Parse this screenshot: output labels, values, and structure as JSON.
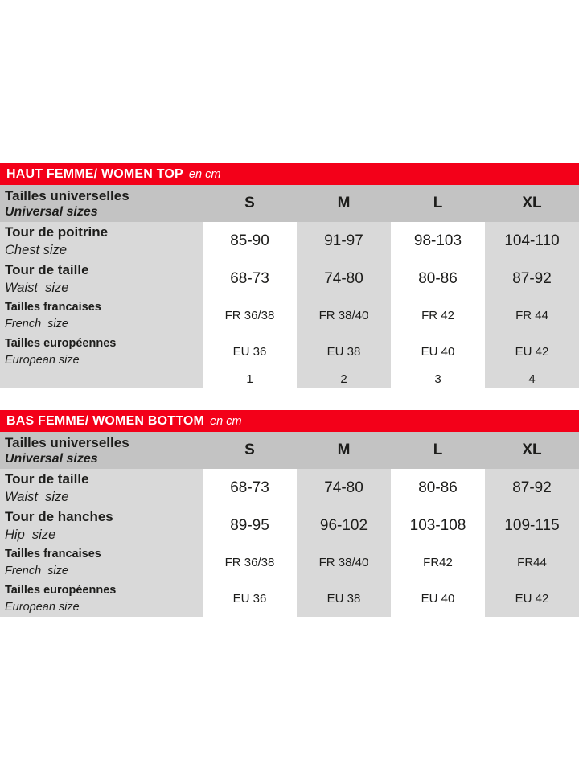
{
  "colors": {
    "banner_red": "#f30019",
    "header_gray": "#c3c3c3",
    "stripe_gray": "#d9d9d9",
    "text_dark": "#1d1d1b",
    "banner_text": "#ffffff"
  },
  "sections": [
    {
      "banner": {
        "title": "HAUT FEMME/ WOMEN TOP",
        "unit": "en cm"
      },
      "header": {
        "label_fr": "Tailles universelles",
        "label_en": "Universal sizes",
        "columns": [
          "S",
          "M",
          "L",
          "XL"
        ]
      },
      "rows": [
        {
          "label_fr": "Tour de poitrine",
          "label_en": "Chest size",
          "values": [
            "85-90",
            "91-97",
            "98-103",
            "104-110"
          ]
        },
        {
          "label_fr": "Tour de taille",
          "label_en": "Waist  size",
          "values": [
            "68-73",
            "74-80",
            "80-86",
            "87-92"
          ]
        },
        {
          "label_fr": "Tailles francaises",
          "label_en": "French  size",
          "values": [
            "FR 36/38",
            "FR 38/40",
            "FR 42",
            "FR 44"
          ]
        },
        {
          "label_fr": "Tailles européennes",
          "label_en": "European size",
          "values": [
            "EU 36",
            "EU 38",
            "EU 40",
            "EU 42"
          ]
        },
        {
          "label_fr": "",
          "label_en": "",
          "values": [
            "1",
            "2",
            "3",
            "4"
          ]
        }
      ]
    },
    {
      "banner": {
        "title": "BAS FEMME/ WOMEN BOTTOM",
        "unit": "en cm"
      },
      "header": {
        "label_fr": "Tailles universelles",
        "label_en": "Universal sizes",
        "columns": [
          "S",
          "M",
          "L",
          "XL"
        ]
      },
      "rows": [
        {
          "label_fr": "Tour de taille",
          "label_en": "Waist  size",
          "values": [
            "68-73",
            "74-80",
            "80-86",
            "87-92"
          ]
        },
        {
          "label_fr": "Tour de hanches",
          "label_en": "Hip  size",
          "values": [
            "89-95",
            "96-102",
            "103-108",
            "109-115"
          ]
        },
        {
          "label_fr": "Tailles francaises",
          "label_en": "French  size",
          "values": [
            "FR 36/38",
            "FR 38/40",
            "FR42",
            "FR44"
          ]
        },
        {
          "label_fr": "Tailles européennes",
          "label_en": "European size",
          "values": [
            "EU 36",
            "EU 38",
            "EU 40",
            "EU 42"
          ]
        }
      ]
    }
  ]
}
